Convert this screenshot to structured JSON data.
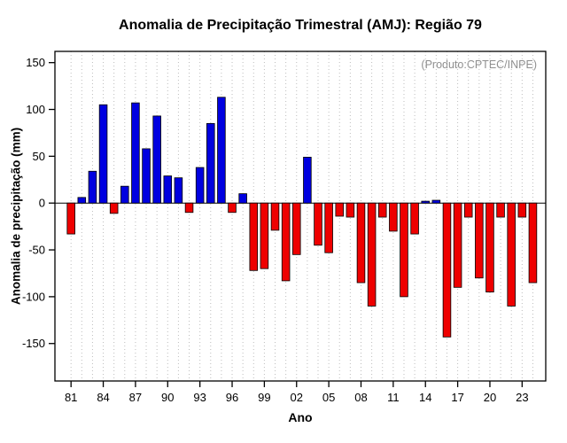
{
  "chart_data": {
    "type": "bar",
    "title": "Anomalia de Precipitação Trimestral (AMJ): Região 79",
    "xlabel": "Ano",
    "ylabel": "Anomalia de precipitação (mm)",
    "annotation": "(Produto:CPTEC/INPE)",
    "x_range": [
      1979.5,
      2025.2
    ],
    "ylim": [
      -190,
      162
    ],
    "y_ticks": [
      -150,
      -100,
      -50,
      0,
      50,
      100,
      150
    ],
    "x_ticks": [
      1981,
      1984,
      1987,
      1990,
      1993,
      1996,
      1999,
      2002,
      2005,
      2008,
      2011,
      2014,
      2017,
      2020,
      2023
    ],
    "x_tick_labels": [
      "81",
      "84",
      "87",
      "90",
      "93",
      "96",
      "99",
      "02",
      "05",
      "08",
      "11",
      "14",
      "17",
      "20",
      "23"
    ],
    "years": [
      1981,
      1982,
      1983,
      1984,
      1985,
      1986,
      1987,
      1988,
      1989,
      1990,
      1991,
      1992,
      1993,
      1994,
      1995,
      1996,
      1997,
      1998,
      1999,
      2000,
      2001,
      2002,
      2003,
      2004,
      2005,
      2006,
      2007,
      2008,
      2009,
      2010,
      2011,
      2012,
      2013,
      2014,
      2015,
      2016,
      2017,
      2018,
      2019,
      2020,
      2021,
      2022,
      2023,
      2024
    ],
    "values": [
      -33,
      6,
      34,
      105,
      -11,
      18,
      107,
      58,
      93,
      29,
      27,
      -10,
      38,
      85,
      113,
      -10,
      10,
      -72,
      -70,
      -29,
      -83,
      -55,
      49,
      -45,
      -53,
      -14,
      -15,
      -85,
      -110,
      -15,
      -30,
      -100,
      -33,
      2,
      3,
      -143,
      -90,
      -15,
      -80,
      -95,
      -15,
      -110,
      -15,
      -85
    ],
    "grid": "vertical-dotted",
    "legend": "none",
    "colors": {
      "positive_bar": "#0000e0",
      "negative_bar": "#ee0000",
      "bar_border": "#000000",
      "grid": "#bdbdbd",
      "axis": "#000000",
      "annotation_text": "#8f8f8f",
      "background": "#ffffff"
    }
  }
}
